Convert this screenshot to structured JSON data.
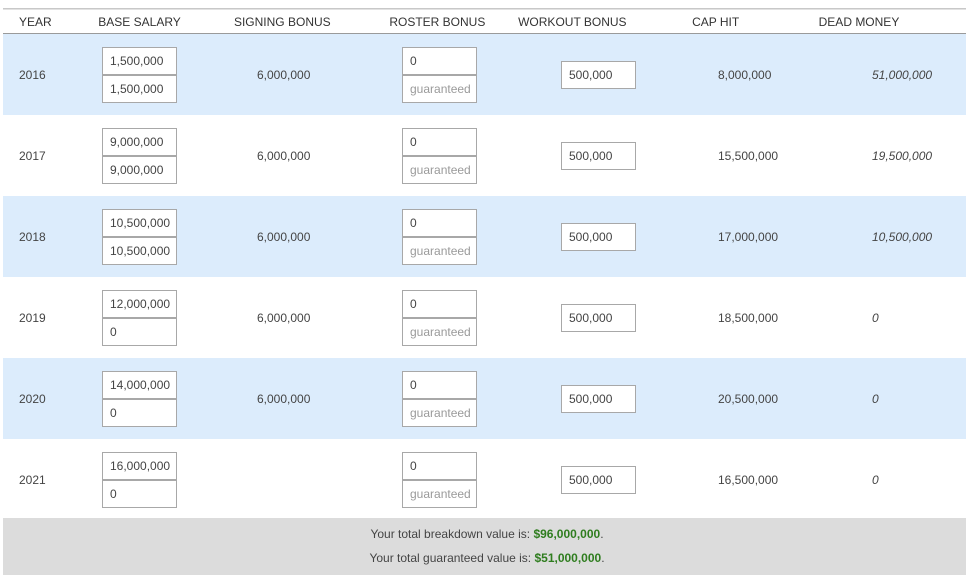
{
  "headers": {
    "year": "YEAR",
    "base_salary": "BASE SALARY",
    "signing_bonus": "SIGNING BONUS",
    "roster_bonus": "ROSTER BONUS",
    "workout_bonus": "WORKOUT BONUS",
    "cap_hit": "CAP HIT",
    "dead_money": "DEAD MONEY"
  },
  "roster_placeholder": "guaranteed",
  "rows": [
    {
      "year": "2016",
      "base": "1,500,000",
      "base_guaranteed": "1,500,000",
      "signing": "6,000,000",
      "roster": "0",
      "workout": "500,000",
      "cap": "8,000,000",
      "dead": "51,000,000"
    },
    {
      "year": "2017",
      "base": "9,000,000",
      "base_guaranteed": "9,000,000",
      "signing": "6,000,000",
      "roster": "0",
      "workout": "500,000",
      "cap": "15,500,000",
      "dead": "19,500,000"
    },
    {
      "year": "2018",
      "base": "10,500,000",
      "base_guaranteed": "10,500,000",
      "signing": "6,000,000",
      "roster": "0",
      "workout": "500,000",
      "cap": "17,000,000",
      "dead": "10,500,000"
    },
    {
      "year": "2019",
      "base": "12,000,000",
      "base_guaranteed": "0",
      "signing": "6,000,000",
      "roster": "0",
      "workout": "500,000",
      "cap": "18,500,000",
      "dead": "0"
    },
    {
      "year": "2020",
      "base": "14,000,000",
      "base_guaranteed": "0",
      "signing": "6,000,000",
      "roster": "0",
      "workout": "500,000",
      "cap": "20,500,000",
      "dead": "0"
    },
    {
      "year": "2021",
      "base": "16,000,000",
      "base_guaranteed": "0",
      "signing": "",
      "roster": "0",
      "workout": "500,000",
      "cap": "16,500,000",
      "dead": "0"
    }
  ],
  "footer": {
    "breakdown_label": "Your total breakdown value is: ",
    "breakdown_value": "$96,000,000",
    "guaranteed_label": "Your total guaranteed value is: ",
    "guaranteed_value": "$51,000,000",
    "period": "."
  },
  "colors": {
    "row_shade": "#dcecfc",
    "footer_bg": "#dcdcdc",
    "money_green": "#2f7d1f"
  }
}
